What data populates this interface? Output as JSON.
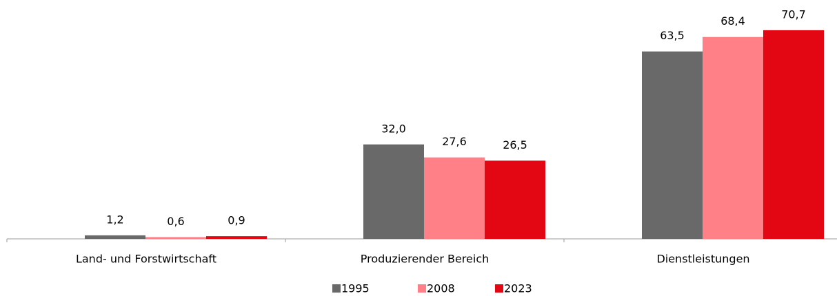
{
  "chart_data": {
    "type": "bar",
    "categories": [
      "Land- und Forstwirtschaft",
      "Produzierender Bereich",
      "Dienstleistungen"
    ],
    "series": [
      {
        "name": "1995",
        "color": "#696969",
        "values": [
          1.2,
          32.0,
          63.5
        ],
        "value_labels": [
          "1,2",
          "32,0",
          "63,5"
        ]
      },
      {
        "name": "2008",
        "color": "#ff8086",
        "values": [
          0.6,
          27.6,
          68.4
        ],
        "value_labels": [
          "0,6",
          "27,6",
          "68,4"
        ]
      },
      {
        "name": "2023",
        "color": "#e30613",
        "values": [
          0.9,
          26.5,
          70.7
        ],
        "value_labels": [
          "0,9",
          "26,5",
          "70,7"
        ]
      }
    ],
    "ylim": [
      0,
      80
    ],
    "legend": "bottom"
  }
}
